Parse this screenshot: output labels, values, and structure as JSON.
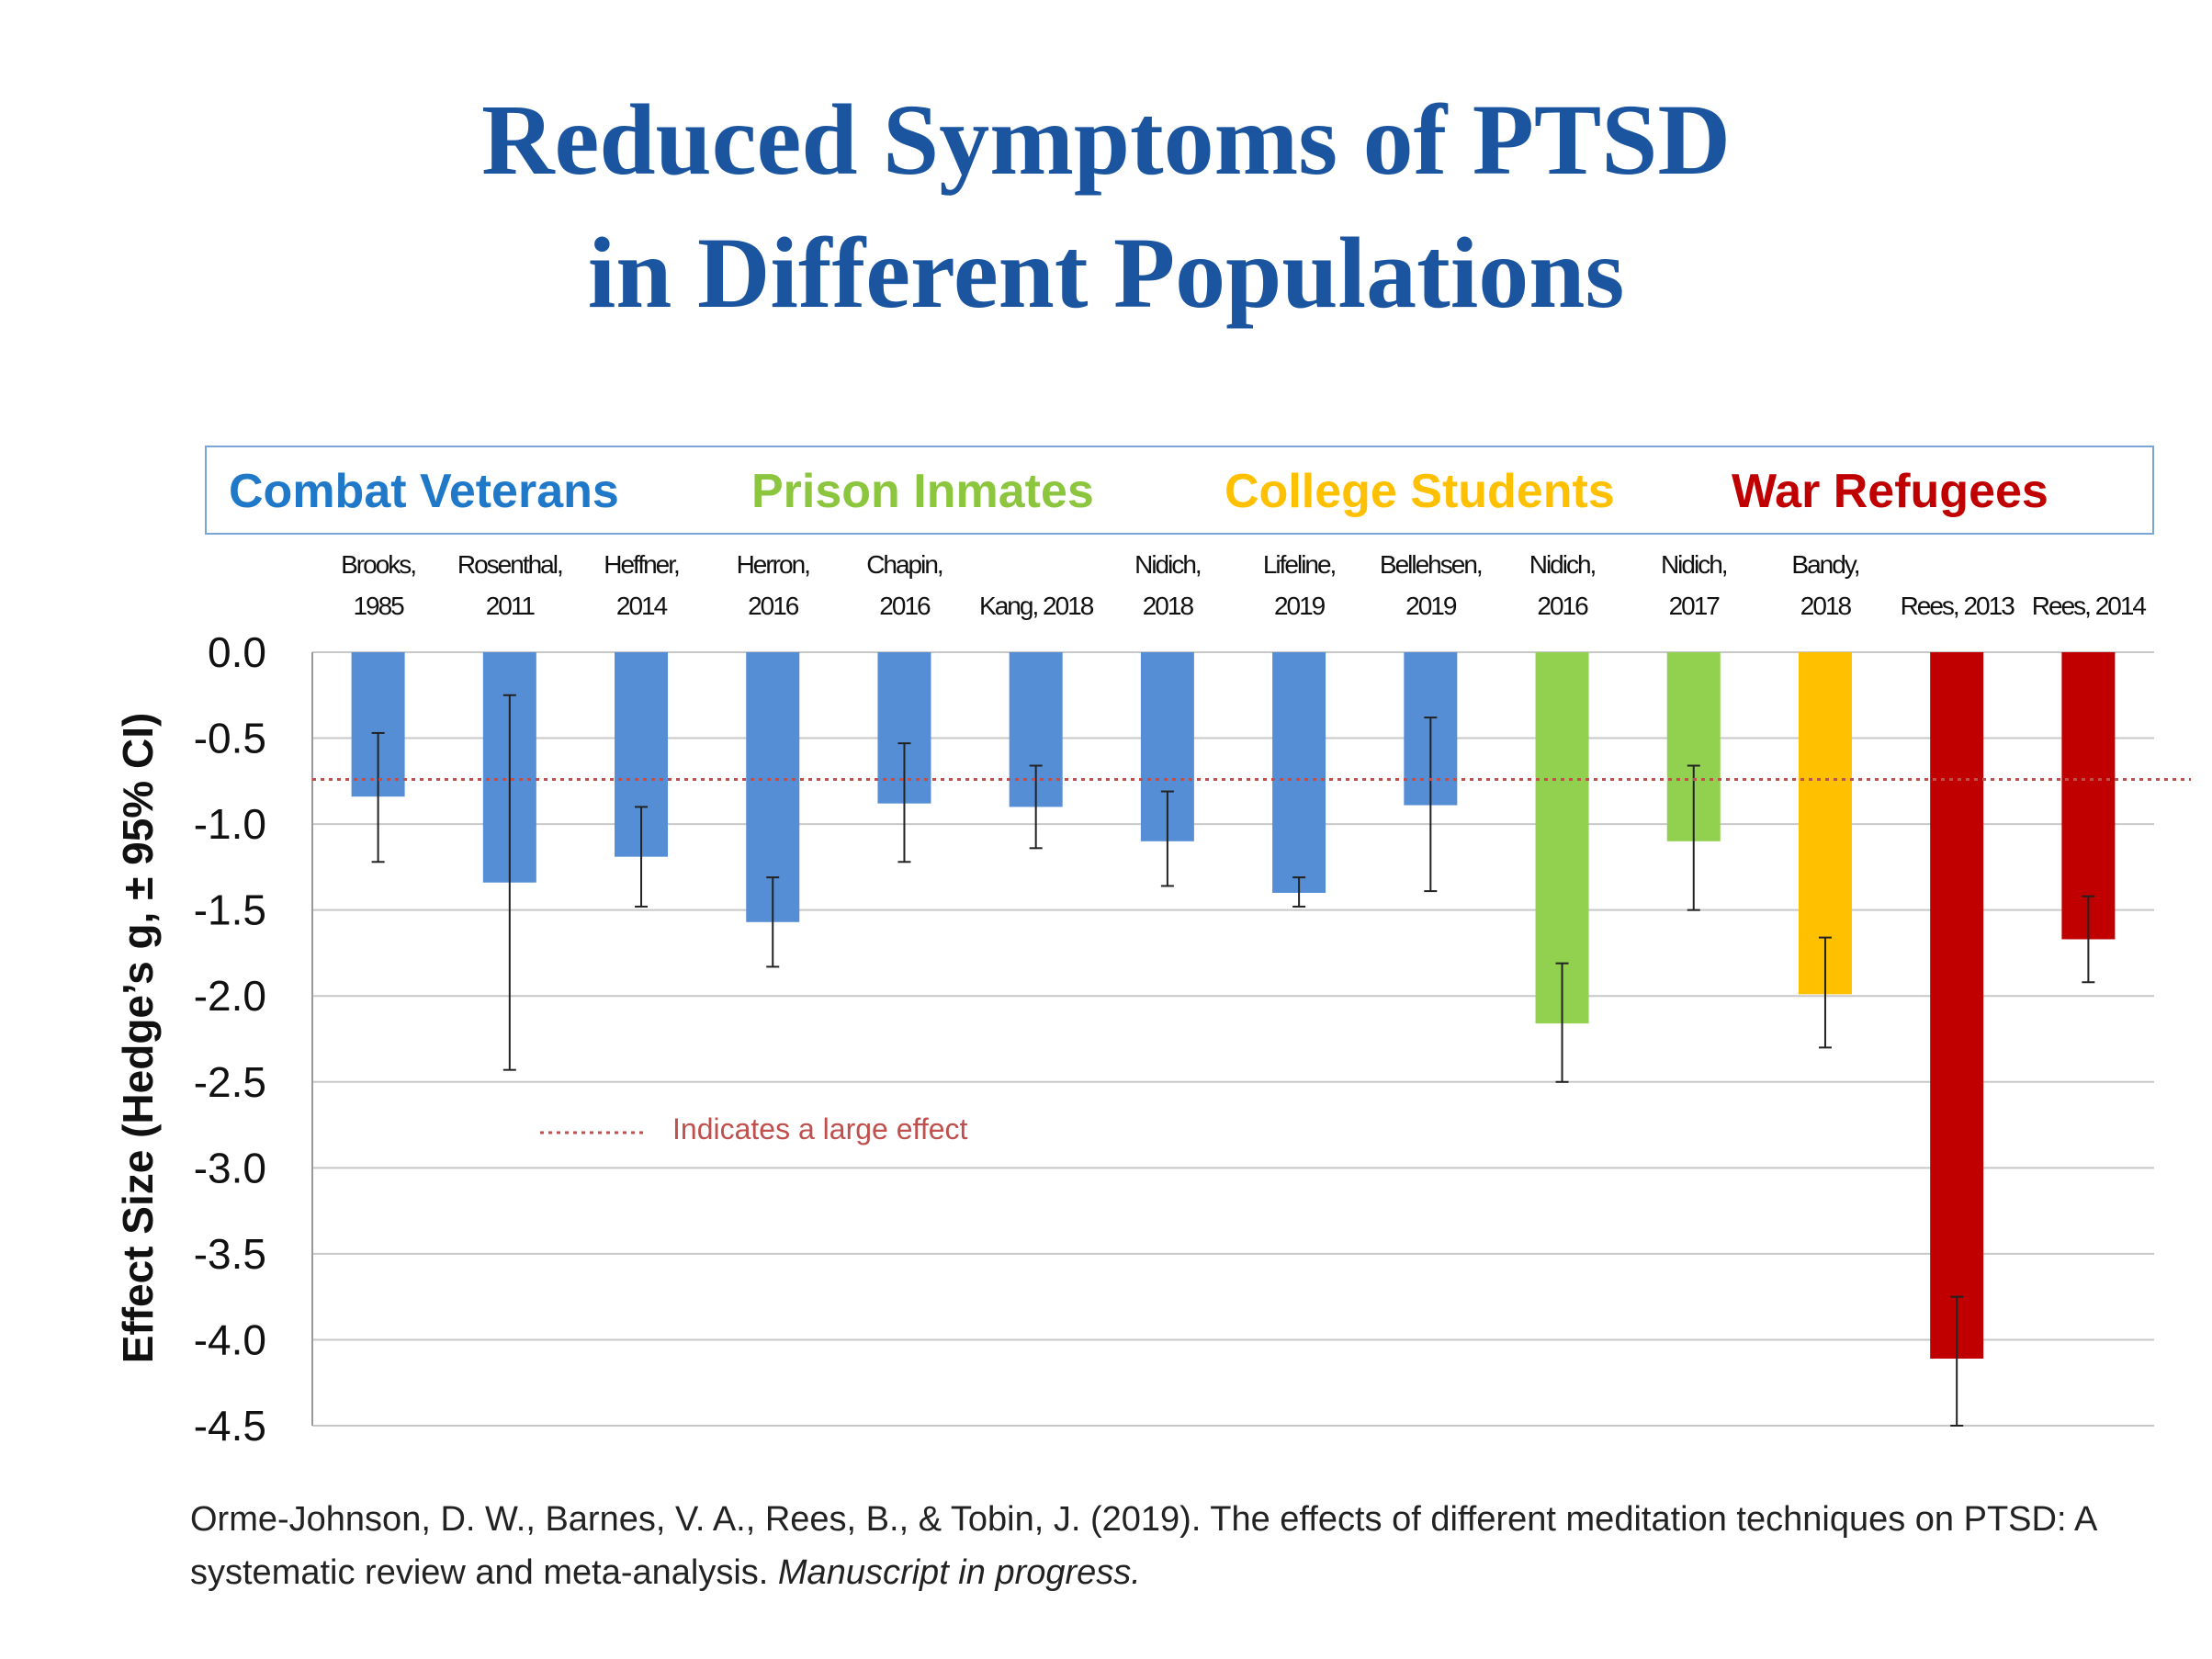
{
  "title": {
    "line1": "Reduced Symptoms of PTSD",
    "line2": "in Different Populations"
  },
  "legend": [
    {
      "label": "Combat Veterans",
      "color": "#1f78c8"
    },
    {
      "label": "Prison Inmates",
      "color": "#8cc63f"
    },
    {
      "label": "College Students",
      "color": "#ffc000"
    },
    {
      "label": "War Refugees",
      "color": "#c00000"
    }
  ],
  "studies": [
    {
      "label": "Brooks,\n1985"
    },
    {
      "label": "Rosenthal,\n2011"
    },
    {
      "label": "Heffner,\n2014"
    },
    {
      "label": "Herron,\n2016"
    },
    {
      "label": "Chapin,\n2016"
    },
    {
      "label": "Kang, 2018"
    },
    {
      "label": "Nidich,\n2018"
    },
    {
      "label": "Lifeline,\n2019"
    },
    {
      "label": "Bellehsen,\n2019"
    },
    {
      "label": "Nidich,\n2016"
    },
    {
      "label": "Nidich,\n2017"
    },
    {
      "label": "Bandy,\n2018"
    },
    {
      "label": "Rees, 2013"
    },
    {
      "label": "Rees, 2014"
    }
  ],
  "large_effect_note": "Indicates a large effect",
  "citation": {
    "text": "Orme-Johnson, D. W., Barnes, V. A., Rees, B., & Tobin, J. (2019). The effects of different meditation techniques on PTSD: A systematic review and meta-analysis.",
    "italic": "Manuscript in progress."
  },
  "chart_data": {
    "type": "bar",
    "title": "Reduced Symptoms of PTSD in Different Populations",
    "xlabel": "",
    "ylabel": "Effect Size (Hedge’s g, ± 95% CI)",
    "ylim": [
      -4.5,
      0.0
    ],
    "yticks": [
      0.0,
      -0.5,
      -1.0,
      -1.5,
      -2.0,
      -2.5,
      -3.0,
      -3.5,
      -4.0,
      -4.5
    ],
    "ytick_labels": [
      "0.0",
      "-0.5",
      "-1.0",
      "-1.5",
      "-2.0",
      "-2.5",
      "-3.0",
      "-3.5",
      "-4.0",
      "-4.5"
    ],
    "grid": true,
    "reference_line": {
      "value": -0.74,
      "label": "Indicates a large effect",
      "color": "#c0504d",
      "style": "dotted"
    },
    "categories": [
      "Brooks, 1985",
      "Rosenthal, 2011",
      "Heffner, 2014",
      "Herron, 2016",
      "Chapin, 2016",
      "Kang, 2018",
      "Nidich, 2018",
      "Lifeline, 2019",
      "Bellehsen, 2019",
      "Nidich, 2016",
      "Nidich, 2017",
      "Bandy, 2018",
      "Rees, 2013",
      "Rees, 2014"
    ],
    "groups": [
      "Combat Veterans",
      "Combat Veterans",
      "Combat Veterans",
      "Combat Veterans",
      "Combat Veterans",
      "Combat Veterans",
      "Combat Veterans",
      "Combat Veterans",
      "Combat Veterans",
      "Prison Inmates",
      "Prison Inmates",
      "College Students",
      "War Refugees",
      "War Refugees"
    ],
    "colors": [
      "#558ed5",
      "#558ed5",
      "#558ed5",
      "#558ed5",
      "#558ed5",
      "#558ed5",
      "#558ed5",
      "#558ed5",
      "#558ed5",
      "#92d050",
      "#92d050",
      "#ffc000",
      "#c00000",
      "#c00000"
    ],
    "values": [
      -0.84,
      -1.34,
      -1.19,
      -1.57,
      -0.88,
      -0.9,
      -1.1,
      -1.4,
      -0.89,
      -2.16,
      -1.1,
      -1.99,
      -4.11,
      -1.67
    ],
    "ci_upper": [
      -0.47,
      -0.25,
      -0.9,
      -1.31,
      -0.53,
      -0.66,
      -0.81,
      -1.31,
      -0.38,
      -1.81,
      -0.66,
      -1.66,
      -3.75,
      -1.42
    ],
    "ci_lower": [
      -1.22,
      -2.43,
      -1.48,
      -1.83,
      -1.22,
      -1.14,
      -1.36,
      -1.48,
      -1.39,
      -2.5,
      -1.5,
      -2.3,
      -4.5,
      -1.92
    ]
  }
}
